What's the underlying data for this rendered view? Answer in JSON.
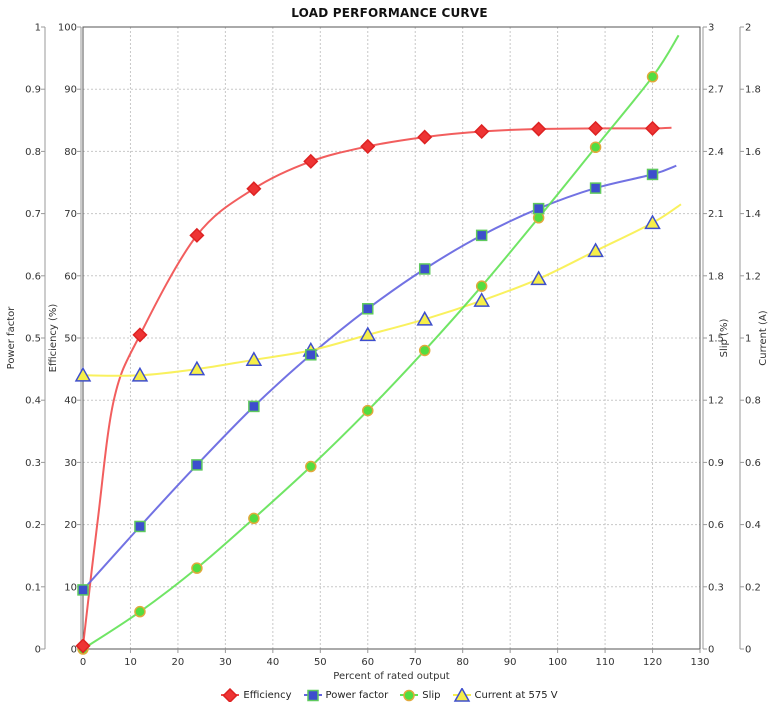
{
  "chart_data": {
    "type": "line",
    "title": "LOAD PERFORMANCE CURVE",
    "grid": true,
    "legend_position": "bottom",
    "x_axis": {
      "label": "Percent of rated output",
      "min": 0,
      "max": 130,
      "tick_labels": [
        "0",
        "10",
        "20",
        "30",
        "40",
        "50",
        "60",
        "70",
        "80",
        "90",
        "100",
        "110",
        "120",
        "130"
      ]
    },
    "y_axes": [
      {
        "id": "power_factor",
        "label": "Power factor",
        "side": "left",
        "min": 0,
        "max": 1,
        "tick_labels": [
          "0",
          "0.1",
          "0.2",
          "0.3",
          "0.4",
          "0.5",
          "0.6",
          "0.7",
          "0.8",
          "0.9",
          "1"
        ]
      },
      {
        "id": "efficiency",
        "label": "Efficiency (%)",
        "side": "left",
        "min": 0,
        "max": 100,
        "tick_labels": [
          "0",
          "10",
          "20",
          "30",
          "40",
          "50",
          "60",
          "70",
          "80",
          "90",
          "100"
        ]
      },
      {
        "id": "slip",
        "label": "Slip (%)",
        "side": "right",
        "min": 0,
        "max": 3,
        "tick_labels": [
          "0",
          "0.3",
          "0.6",
          "0.9",
          "1.2",
          "1.5",
          "1.8",
          "2.1",
          "2.4",
          "2.7",
          "3"
        ]
      },
      {
        "id": "current",
        "label": "Current (A)",
        "side": "right",
        "min": 0,
        "max": 2,
        "tick_labels": [
          "0",
          "0.2",
          "0.4",
          "0.6",
          "0.8",
          "1",
          "1.2",
          "1.4",
          "1.6",
          "1.8",
          "2"
        ]
      }
    ],
    "x": [
      0,
      12,
      24,
      36,
      48,
      60,
      72,
      84,
      96,
      108,
      120
    ],
    "series": [
      {
        "name": "Efficiency",
        "y_axis": "efficiency",
        "marker": "diamond",
        "line_color": "#f14c4c",
        "marker_fill": "#ee3434",
        "marker_stroke": "#dd2222",
        "values": [
          0.5,
          50.5,
          66.5,
          74.0,
          78.4,
          80.8,
          82.3,
          83.2,
          83.6,
          83.7,
          83.7
        ],
        "curve_lead_points": [
          [
            3,
            20
          ],
          [
            6.5,
            40
          ]
        ],
        "curve_end": [
          124,
          83.8
        ]
      },
      {
        "name": "Power factor",
        "y_axis": "power_factor",
        "marker": "square",
        "line_color": "#6363e0",
        "marker_fill": "#3d4ecd",
        "marker_stroke": "#5ec95e",
        "values": [
          0.095,
          0.197,
          0.296,
          0.39,
          0.473,
          0.547,
          0.611,
          0.665,
          0.708,
          0.741,
          0.763
        ],
        "curve_lead_points": [],
        "curve_end": [
          125,
          0.777
        ]
      },
      {
        "name": "Slip",
        "y_axis": "slip",
        "marker": "circle",
        "line_color": "#61e254",
        "marker_fill": "#52dd40",
        "marker_stroke": "#e1a93b",
        "values": [
          0.0,
          0.18,
          0.39,
          0.63,
          0.88,
          1.15,
          1.44,
          1.75,
          2.08,
          2.42,
          2.76
        ],
        "curve_lead_points": [],
        "curve_end": [
          125.5,
          2.96
        ]
      },
      {
        "name": "Current at 575 V",
        "y_axis": "current",
        "marker": "triangle",
        "line_color": "#f8ef4d",
        "marker_fill": "#f6ee49",
        "marker_stroke": "#3d4ecd",
        "values": [
          0.88,
          0.88,
          0.9,
          0.93,
          0.96,
          1.01,
          1.06,
          1.12,
          1.19,
          1.28,
          1.37
        ],
        "curve_lead_points": [],
        "curve_end": [
          126,
          1.43
        ]
      }
    ],
    "colors": {
      "background": "#ffffff",
      "gridline": "#c8c8c8",
      "plot_border": "#555555",
      "axis_line": "#999999",
      "text": "#333333"
    }
  }
}
